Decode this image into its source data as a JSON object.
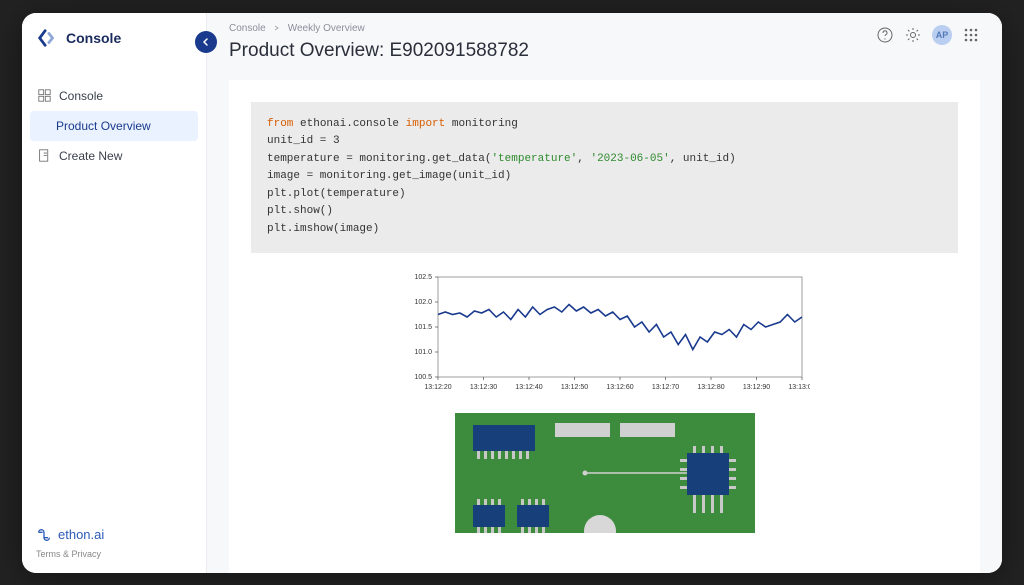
{
  "brand": {
    "name": "Console",
    "footer_name": "ethon.ai",
    "legal": "Terms & Privacy",
    "accent": "#1a3a8e"
  },
  "sidebar": {
    "items": [
      {
        "label": "Console",
        "icon": "dashboard"
      },
      {
        "label": "Product Overview",
        "icon": "",
        "active": true
      },
      {
        "label": "Create New",
        "icon": "plus-doc"
      }
    ]
  },
  "breadcrumb": {
    "root": "Console",
    "current": "Weekly Overview"
  },
  "page": {
    "title": "Product Overview: E902091588782"
  },
  "avatar": {
    "initials": "AP"
  },
  "code": {
    "lines": [
      {
        "t": "from ",
        "c": "kw-from"
      },
      {
        "t": "ethonai.console ",
        "c": ""
      },
      {
        "t": "import ",
        "c": "kw-import"
      },
      {
        "t": "monitoring",
        "c": ""
      },
      {
        "br": true
      },
      {
        "t": "unit_id = 3",
        "c": ""
      },
      {
        "br": true
      },
      {
        "t": "temperature = monitoring.get_data(",
        "c": ""
      },
      {
        "t": "'temperature'",
        "c": "str"
      },
      {
        "t": ", ",
        "c": ""
      },
      {
        "t": "'2023-06-05'",
        "c": "str"
      },
      {
        "t": ", unit_id)",
        "c": ""
      },
      {
        "br": true
      },
      {
        "t": "image = monitoring.get_image(unit_id)",
        "c": ""
      },
      {
        "br": true
      },
      {
        "t": "plt.plot(temperature)",
        "c": ""
      },
      {
        "br": true
      },
      {
        "t": "plt.show()",
        "c": ""
      },
      {
        "br": true
      },
      {
        "t": "plt.imshow(image)",
        "c": ""
      }
    ]
  },
  "chart": {
    "type": "line",
    "line_color": "#1a3a8e",
    "line_width": 1.6,
    "background_color": "#ffffff",
    "border_color": "#888888",
    "ylim": [
      100.5,
      102.5
    ],
    "yticks": [
      100.5,
      101.0,
      101.5,
      102.0,
      102.5
    ],
    "ytick_labels": [
      "100.5",
      "101.0",
      "101.5",
      "102.0",
      "102.5"
    ],
    "xticks": [
      "13:12:20",
      "13:12:30",
      "13:12:40",
      "13:12:50",
      "13:12:60",
      "13:12:70",
      "13:12:80",
      "13:12:90",
      "13:13:00"
    ],
    "x": [
      0,
      2,
      4,
      6,
      8,
      10,
      12,
      14,
      16,
      18,
      20,
      22,
      24,
      26,
      28,
      30,
      32,
      34,
      36,
      38,
      40,
      42,
      44,
      46,
      48,
      50,
      52,
      54,
      56,
      58,
      60,
      62,
      64,
      66,
      68,
      70,
      72,
      74,
      76,
      78,
      80,
      82,
      84,
      86,
      88,
      90,
      92,
      94,
      96,
      98,
      100
    ],
    "y": [
      101.75,
      101.8,
      101.75,
      101.78,
      101.7,
      101.82,
      101.78,
      101.85,
      101.7,
      101.8,
      101.65,
      101.85,
      101.7,
      101.9,
      101.75,
      101.85,
      101.9,
      101.8,
      101.95,
      101.82,
      101.9,
      101.78,
      101.85,
      101.72,
      101.8,
      101.65,
      101.72,
      101.5,
      101.6,
      101.4,
      101.55,
      101.3,
      101.4,
      101.15,
      101.35,
      101.05,
      101.3,
      101.2,
      101.4,
      101.35,
      101.45,
      101.3,
      101.55,
      101.45,
      101.6,
      101.5,
      101.55,
      101.6,
      101.75,
      101.6,
      101.7
    ],
    "axis_fontsize": 7
  },
  "pcb": {
    "board_color": "#3d8c3d",
    "chip_color": "#17407a",
    "trace_color": "#d0d0d0",
    "mask_color": "#a8c8a8",
    "pin_color": "#c8c8c8"
  }
}
